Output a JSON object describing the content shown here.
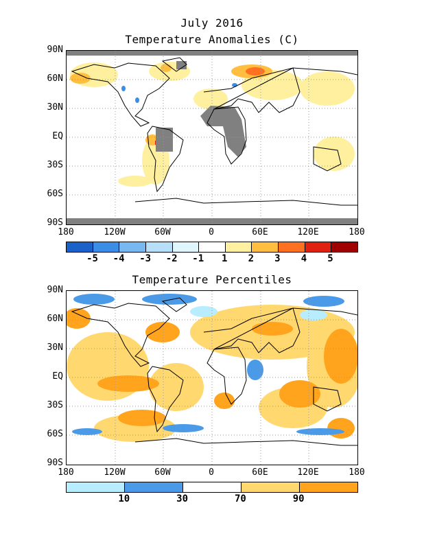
{
  "header": {
    "month": "July 2016"
  },
  "anomaly_map": {
    "title": "Temperature Anomalies (C)",
    "lat_labels": [
      "90N",
      "60N",
      "30N",
      "EQ",
      "30S",
      "60S",
      "90S"
    ],
    "lon_labels": [
      "180",
      "120W",
      "60W",
      "0",
      "60E",
      "120E",
      "180"
    ],
    "legend": {
      "colors": [
        "#1a62c8",
        "#3a8ee6",
        "#78b8f0",
        "#b8dffa",
        "#e0f6ff",
        "#ffffff",
        "#fff0a0",
        "#ffbe40",
        "#ff7020",
        "#e02010",
        "#a00000"
      ],
      "labels": [
        "-5",
        "-4",
        "-3",
        "-2",
        "-1",
        "1",
        "2",
        "3",
        "4",
        "5"
      ]
    }
  },
  "percentile_map": {
    "title": "Temperature Percentiles",
    "lat_labels": [
      "90N",
      "60N",
      "30N",
      "EQ",
      "30S",
      "60S",
      "90S"
    ],
    "lon_labels": [
      "180",
      "120W",
      "60W",
      "0",
      "60E",
      "120E",
      "180"
    ],
    "legend": {
      "colors": [
        "#b8ecff",
        "#4a9ae8",
        "#ffffff",
        "#ffd870",
        "#ffa41c"
      ],
      "labels": [
        "10",
        "30",
        "70",
        "90"
      ]
    }
  }
}
